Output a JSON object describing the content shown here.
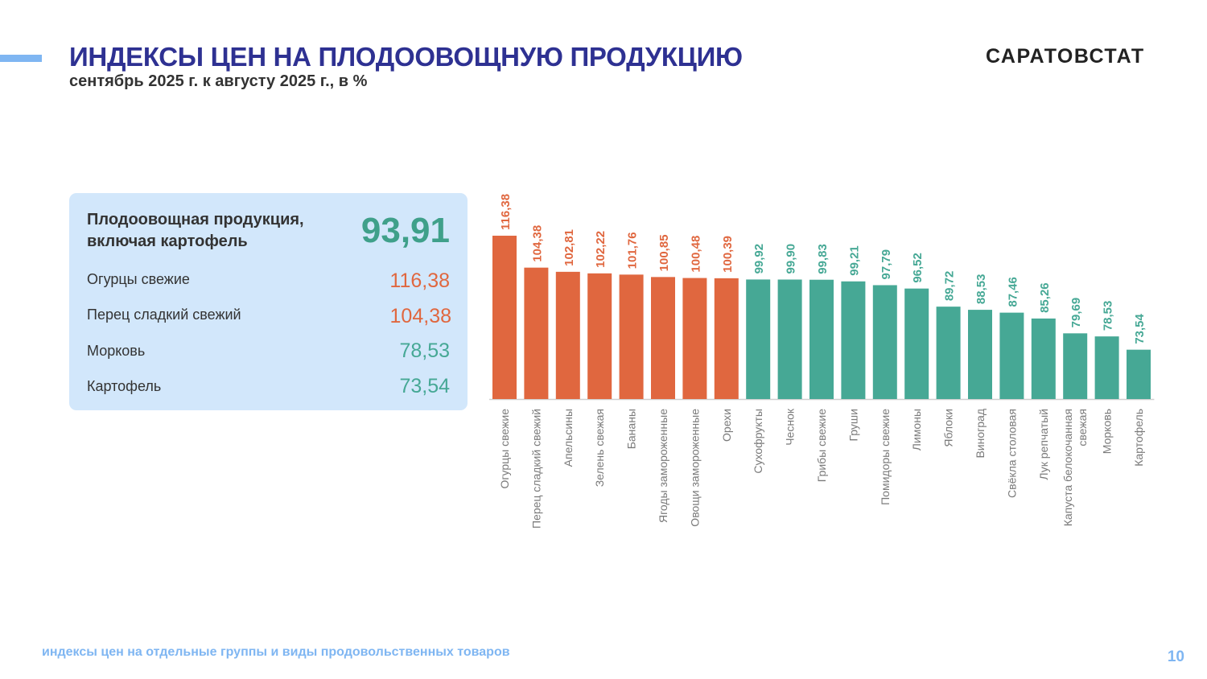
{
  "header": {
    "title": "ИНДЕКСЫ ЦЕН НА ПЛОДООВОЩНУЮ ПРОДУКЦИЮ",
    "subtitle": "сентябрь 2025 г. к августу 2025 г., в %",
    "logo": "САРАТОВСТАТ"
  },
  "panel": {
    "main_label_line1": "Плодоовощная продукция,",
    "main_label_line2": "включая картофель",
    "main_value": "93,91",
    "rows": [
      {
        "label": "Огурцы свежие",
        "value": "116,38",
        "status": "up"
      },
      {
        "label": "Перец сладкий свежий",
        "value": "104,38",
        "status": "up"
      },
      {
        "label": "Морковь",
        "value": "78,53",
        "status": "down"
      },
      {
        "label": "Картофель",
        "value": "73,54",
        "status": "down"
      }
    ]
  },
  "footer": {
    "text": "индексы цен на отдельные группы и виды продовольственных товаров",
    "page_number": "10"
  },
  "colors": {
    "up": "#e0673f",
    "down": "#46a895",
    "title": "#2e3192",
    "accent": "#7fb6f2",
    "panel_bg": "#d2e7fb"
  },
  "chart_data": {
    "type": "bar",
    "title": "",
    "xlabel": "",
    "ylabel": "",
    "ylim": [
      55,
      120
    ],
    "grid": false,
    "threshold": 100,
    "categories": [
      [
        "Огурцы свежие"
      ],
      [
        "Перец сладкий свежий"
      ],
      [
        "Апельсины"
      ],
      [
        "Зелень свежая"
      ],
      [
        "Бананы"
      ],
      [
        "Ягоды замороженные"
      ],
      [
        "Овощи замороженные"
      ],
      [
        "Орехи"
      ],
      [
        "Сухофрукты"
      ],
      [
        "Чеснок"
      ],
      [
        "Грибы свежие"
      ],
      [
        "Груши"
      ],
      [
        "Помидоры свежие"
      ],
      [
        "Лимоны"
      ],
      [
        "Яблоки"
      ],
      [
        "Виноград"
      ],
      [
        "Свёкла столовая"
      ],
      [
        "Лук репчатый"
      ],
      [
        "Капуста белокочанная",
        "свежая"
      ],
      [
        "Морковь"
      ],
      [
        "Картофель"
      ]
    ],
    "values": [
      116.38,
      104.38,
      102.81,
      102.22,
      101.76,
      100.85,
      100.48,
      100.39,
      99.92,
      99.9,
      99.83,
      99.21,
      97.79,
      96.52,
      89.72,
      88.53,
      87.46,
      85.26,
      79.69,
      78.53,
      73.54
    ],
    "labels": [
      "116,38",
      "104,38",
      "102,81",
      "102,22",
      "101,76",
      "100,85",
      "100,48",
      "100,39",
      "99,92",
      "99,90",
      "99,83",
      "99,21",
      "97,79",
      "96,52",
      "89,72",
      "88,53",
      "87,46",
      "85,26",
      "79,69",
      "78,53",
      "73,54"
    ]
  }
}
